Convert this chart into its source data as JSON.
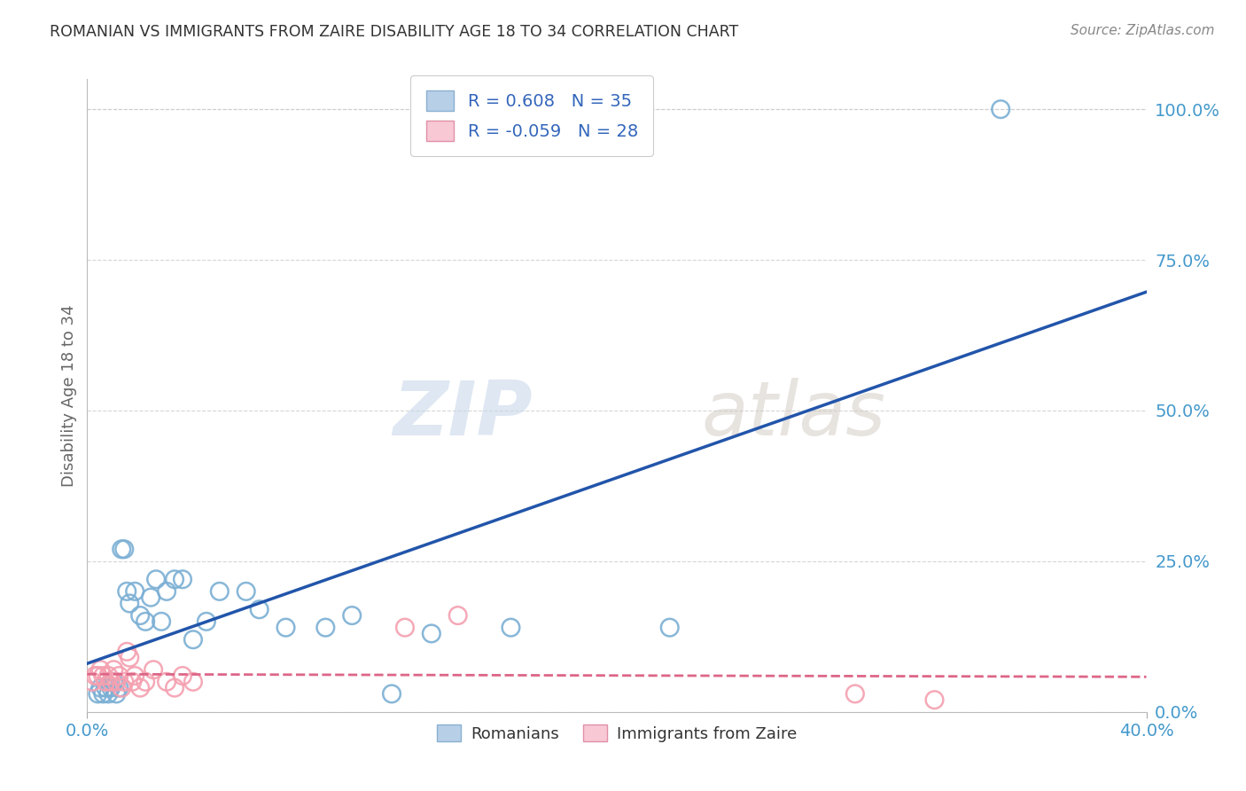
{
  "title": "ROMANIAN VS IMMIGRANTS FROM ZAIRE DISABILITY AGE 18 TO 34 CORRELATION CHART",
  "source": "Source: ZipAtlas.com",
  "ylabel_label": "Disability Age 18 to 34",
  "xlim": [
    0.0,
    0.4
  ],
  "ylim": [
    0.0,
    1.05
  ],
  "x_tick_positions": [
    0.0,
    0.4
  ],
  "x_tick_labels": [
    "0.0%",
    "40.0%"
  ],
  "y_tick_positions": [
    0.0,
    0.25,
    0.5,
    0.75,
    1.0
  ],
  "y_tick_labels": [
    "0.0%",
    "25.0%",
    "50.0%",
    "75.0%",
    "100.0%"
  ],
  "romanian_color": "#7bafd4",
  "zaire_color": "#f4a0b0",
  "trendline_romanian_color": "#2255aa",
  "trendline_zaire_color": "#dd6688",
  "watermark_zip": "ZIP",
  "watermark_atlas": "atlas",
  "legend_r_romanian": "0.608",
  "legend_n_romanian": "35",
  "legend_r_zaire": "-0.059",
  "legend_n_zaire": "28",
  "romanian_x": [
    0.004,
    0.005,
    0.006,
    0.007,
    0.008,
    0.009,
    0.01,
    0.011,
    0.012,
    0.013,
    0.014,
    0.015,
    0.016,
    0.018,
    0.02,
    0.022,
    0.024,
    0.026,
    0.028,
    0.03,
    0.033,
    0.036,
    0.04,
    0.045,
    0.05,
    0.06,
    0.065,
    0.075,
    0.09,
    0.1,
    0.115,
    0.13,
    0.16,
    0.22,
    0.345
  ],
  "romanian_y": [
    0.03,
    0.04,
    0.03,
    0.04,
    0.03,
    0.04,
    0.05,
    0.03,
    0.04,
    0.27,
    0.27,
    0.2,
    0.18,
    0.2,
    0.16,
    0.15,
    0.19,
    0.22,
    0.15,
    0.2,
    0.22,
    0.22,
    0.12,
    0.15,
    0.2,
    0.2,
    0.17,
    0.14,
    0.14,
    0.16,
    0.03,
    0.13,
    0.14,
    0.14,
    1.0
  ],
  "zaire_x": [
    0.002,
    0.003,
    0.004,
    0.005,
    0.006,
    0.007,
    0.008,
    0.009,
    0.01,
    0.011,
    0.012,
    0.013,
    0.014,
    0.015,
    0.016,
    0.017,
    0.018,
    0.02,
    0.022,
    0.025,
    0.03,
    0.033,
    0.036,
    0.04,
    0.12,
    0.14,
    0.29,
    0.32
  ],
  "zaire_y": [
    0.05,
    0.06,
    0.06,
    0.07,
    0.06,
    0.05,
    0.06,
    0.05,
    0.07,
    0.05,
    0.06,
    0.04,
    0.05,
    0.1,
    0.09,
    0.05,
    0.06,
    0.04,
    0.05,
    0.07,
    0.05,
    0.04,
    0.06,
    0.05,
    0.14,
    0.16,
    0.03,
    0.02
  ],
  "background_color": "#ffffff",
  "grid_color": "#cccccc",
  "tick_color": "#4499cc"
}
